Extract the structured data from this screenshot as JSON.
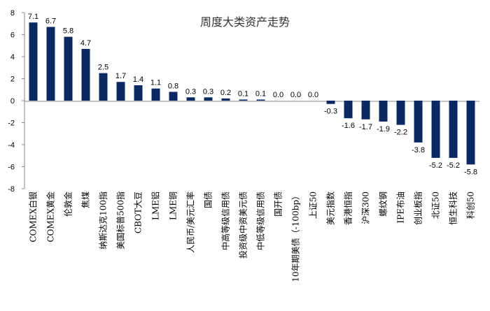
{
  "colors": {
    "bar": "#0b2a63",
    "axis": "#888888",
    "text": "#000000",
    "background": "#ffffff"
  },
  "chart_data": {
    "type": "bar",
    "title": "周度大类资产走势",
    "xlabel": "",
    "ylabel": "",
    "ylim": [
      -8,
      8
    ],
    "yticks": [
      -8,
      -6,
      -4,
      -2,
      0,
      2,
      4,
      6,
      8
    ],
    "grid": false,
    "legend": "none",
    "categories": [
      "COMEX白银",
      "COMEX黄金",
      "伦敦金",
      "焦煤",
      "纳斯达克100指",
      "美国标普500指",
      "CBOT大豆",
      "LME铝",
      "LME铜",
      "人民币/美元汇率",
      "国债",
      "中高等级信用债",
      "投资级中资美元债",
      "中低等级信用债",
      "国开债",
      "10年期美债（-100bp）",
      "上证50",
      "美元指数",
      "香港恒指",
      "沪深300",
      "螺纹钢",
      "IPE布油",
      "创业板指",
      "北证50",
      "恒生科技",
      "科创50"
    ],
    "values": [
      7.1,
      6.7,
      5.8,
      4.7,
      2.5,
      1.7,
      1.4,
      1.1,
      0.8,
      0.3,
      0.3,
      0.2,
      0.1,
      0.1,
      0.0,
      0.0,
      0.0,
      -0.3,
      -1.6,
      -1.7,
      -1.9,
      -2.2,
      -3.8,
      -5.2,
      -5.2,
      -5.8
    ],
    "data_labels": [
      "7.1",
      "6.7",
      "5.8",
      "4.7",
      "2.5",
      "1.7",
      "1.4",
      "1.1",
      "0.8",
      "0.3",
      "0.3",
      "0.2",
      "0.1",
      "0.1",
      "0.0",
      "0.0",
      "0.0",
      "-0.3",
      "-1.6",
      "-1.7",
      "-1.9",
      "-2.2",
      "-3.8",
      "-5.2",
      "-5.2",
      "-5.8"
    ]
  }
}
